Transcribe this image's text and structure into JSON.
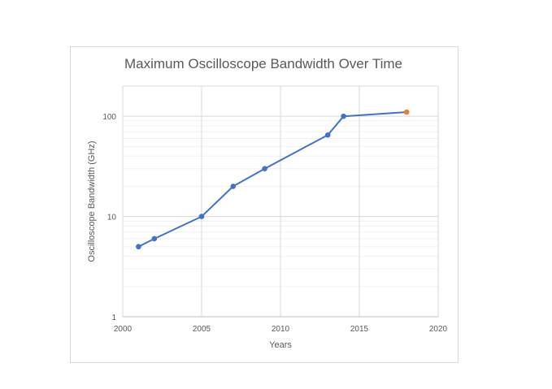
{
  "chart_data": {
    "type": "line",
    "title": "Maximum Oscilloscope Bandwidth Over Time",
    "xlabel": "Years",
    "ylabel": "Oscilloscope Bandwidth (GHz)",
    "x_scale": "linear",
    "y_scale": "log",
    "xlim": [
      2000,
      2020
    ],
    "ylim": [
      1,
      200
    ],
    "x_ticks": [
      2000,
      2005,
      2010,
      2015,
      2020
    ],
    "y_ticks": [
      1,
      10,
      100
    ],
    "grid": true,
    "legend": "none",
    "series": [
      {
        "color": "#4472c4",
        "x": [
          2001,
          2002,
          2005,
          2007,
          2009,
          2013,
          2014,
          2018
        ],
        "y": [
          5,
          6,
          10,
          20,
          30,
          65,
          100,
          110
        ],
        "point_colors": [
          "#4472c4",
          "#4472c4",
          "#4472c4",
          "#4472c4",
          "#4472c4",
          "#4472c4",
          "#4472c4",
          "#ed7d31"
        ]
      }
    ]
  }
}
